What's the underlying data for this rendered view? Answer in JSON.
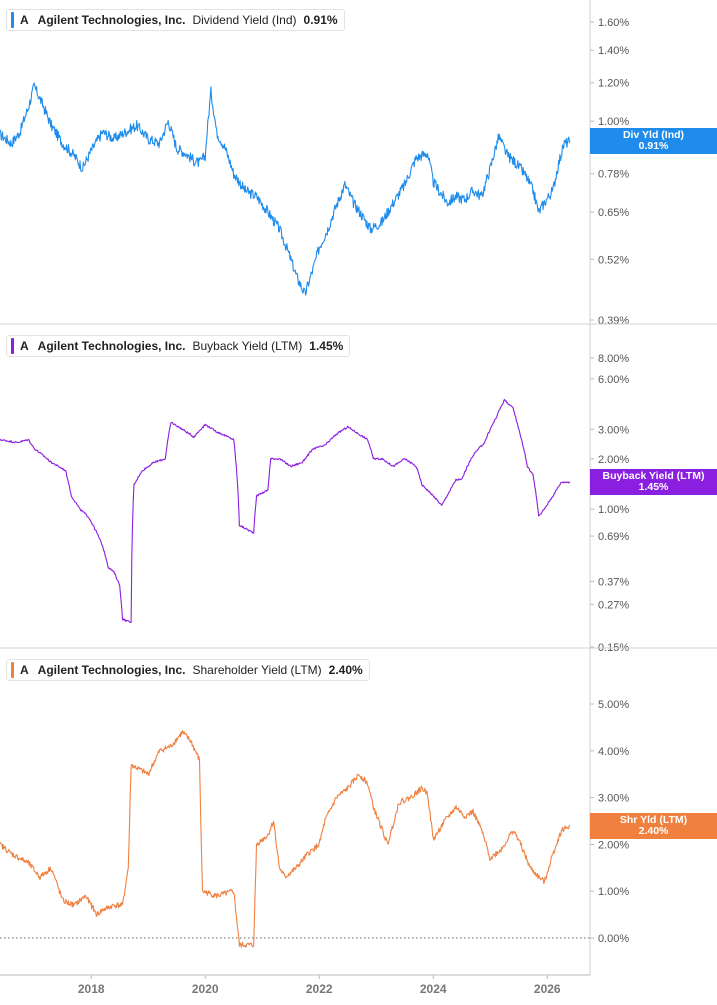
{
  "chart_data": [
    {
      "type": "line",
      "ticker": "A",
      "company": "Agilent Technologies, Inc.",
      "metric": "Dividend Yield (Ind)",
      "current_value": "0.91%",
      "tag_label": "Div Yld (Ind)",
      "tag_value": "0.91%",
      "color": "#1f8ceb",
      "scale": "log",
      "ylim": [
        0.37,
        1.9
      ],
      "y_ticks": [
        {
          "v": 1.6,
          "label": "1.60%"
        },
        {
          "v": 1.4,
          "label": "1.40%"
        },
        {
          "v": 1.2,
          "label": "1.20%"
        },
        {
          "v": 1.0,
          "label": "1.00%"
        },
        {
          "v": 0.91,
          "label": "0.91%"
        },
        {
          "v": 0.78,
          "label": "0.78%"
        },
        {
          "v": 0.65,
          "label": "0.65%"
        },
        {
          "v": 0.52,
          "label": "0.52%"
        },
        {
          "v": 0.39,
          "label": "0.39%"
        }
      ],
      "x": [
        2016.4,
        2016.6,
        2016.75,
        2016.9,
        2017.0,
        2017.15,
        2017.3,
        2017.5,
        2017.7,
        2017.85,
        2018.0,
        2018.2,
        2018.4,
        2018.6,
        2018.8,
        2019.0,
        2019.2,
        2019.35,
        2019.5,
        2019.65,
        2019.8,
        2019.9,
        2020.0,
        2020.1,
        2020.2,
        2020.35,
        2020.5,
        2020.7,
        2020.9,
        2021.1,
        2021.3,
        2021.5,
        2021.6,
        2021.75,
        2021.9,
        2022.0,
        2022.15,
        2022.3,
        2022.45,
        2022.6,
        2022.75,
        2022.9,
        2023.1,
        2023.3,
        2023.5,
        2023.7,
        2023.9,
        2024.0,
        2024.1,
        2024.25,
        2024.4,
        2024.55,
        2024.7,
        2024.85,
        2025.0,
        2025.15,
        2025.3,
        2025.45,
        2025.6,
        2025.75,
        2025.85,
        2025.95,
        2026.1,
        2026.2,
        2026.3,
        2026.4
      ],
      "values": [
        0.94,
        0.9,
        0.95,
        1.07,
        1.18,
        1.08,
        0.98,
        0.9,
        0.85,
        0.8,
        0.87,
        0.95,
        0.92,
        0.95,
        0.98,
        0.92,
        0.9,
        1.0,
        0.88,
        0.86,
        0.83,
        0.82,
        0.85,
        1.15,
        0.95,
        0.88,
        0.78,
        0.72,
        0.7,
        0.65,
        0.6,
        0.52,
        0.48,
        0.44,
        0.5,
        0.55,
        0.6,
        0.67,
        0.74,
        0.68,
        0.64,
        0.6,
        0.62,
        0.68,
        0.74,
        0.84,
        0.86,
        0.75,
        0.72,
        0.68,
        0.7,
        0.69,
        0.72,
        0.7,
        0.8,
        0.93,
        0.85,
        0.82,
        0.78,
        0.72,
        0.65,
        0.68,
        0.72,
        0.82,
        0.9,
        0.91
      ]
    },
    {
      "type": "line",
      "ticker": "A",
      "company": "Agilent Technologies, Inc.",
      "metric": "Buyback Yield (LTM)",
      "current_value": "1.45%",
      "tag_label": "Buyback Yield (LTM)",
      "tag_value": "1.45%",
      "color": "#8a1fe0",
      "scale": "log",
      "ylim": [
        0.145,
        10.5
      ],
      "y_ticks": [
        {
          "v": 8.0,
          "label": "8.00%"
        },
        {
          "v": 6.0,
          "label": "6.00%"
        },
        {
          "v": 3.0,
          "label": "3.00%"
        },
        {
          "v": 2.0,
          "label": "2.00%"
        },
        {
          "v": 1.0,
          "label": "1.00%"
        },
        {
          "v": 0.69,
          "label": "0.69%"
        },
        {
          "v": 0.37,
          "label": "0.37%"
        },
        {
          "v": 0.27,
          "label": "0.27%"
        },
        {
          "v": 0.15,
          "label": "0.15%"
        }
      ],
      "x": [
        2016.4,
        2016.7,
        2016.9,
        2017.0,
        2017.3,
        2017.55,
        2017.65,
        2017.8,
        2017.95,
        2018.1,
        2018.2,
        2018.3,
        2018.4,
        2018.5,
        2018.55,
        2018.7,
        2018.75,
        2018.9,
        2019.1,
        2019.3,
        2019.4,
        2019.6,
        2019.8,
        2020.0,
        2020.2,
        2020.5,
        2020.6,
        2020.85,
        2020.9,
        2021.1,
        2021.15,
        2021.3,
        2021.5,
        2021.7,
        2021.9,
        2022.1,
        2022.3,
        2022.5,
        2022.7,
        2022.85,
        2022.95,
        2023.1,
        2023.3,
        2023.5,
        2023.7,
        2023.8,
        2023.9,
        2024.0,
        2024.15,
        2024.3,
        2024.4,
        2024.5,
        2024.7,
        2024.9,
        2025.1,
        2025.25,
        2025.4,
        2025.5,
        2025.65,
        2025.75,
        2025.85,
        2025.95,
        2026.1,
        2026.25,
        2026.4
      ],
      "values": [
        2.6,
        2.5,
        2.6,
        2.3,
        1.9,
        1.7,
        1.2,
        1.0,
        0.9,
        0.72,
        0.6,
        0.45,
        0.42,
        0.35,
        0.22,
        0.21,
        1.4,
        1.7,
        1.9,
        2.0,
        3.3,
        3.0,
        2.7,
        3.2,
        2.9,
        2.6,
        0.8,
        0.72,
        1.2,
        1.3,
        2.0,
        2.0,
        1.8,
        1.9,
        2.3,
        2.4,
        2.8,
        3.1,
        2.8,
        2.6,
        2.0,
        2.0,
        1.8,
        2.0,
        1.8,
        1.4,
        1.3,
        1.2,
        1.05,
        1.3,
        1.5,
        1.5,
        2.1,
        2.5,
        3.5,
        4.5,
        4.0,
        3.0,
        1.8,
        1.6,
        0.9,
        1.0,
        1.2,
        1.45,
        1.45
      ]
    },
    {
      "type": "line",
      "ticker": "A",
      "company": "Agilent Technologies, Inc.",
      "metric": "Shareholder Yield (LTM)",
      "current_value": "2.40%",
      "tag_label": "Shr Yld (LTM)",
      "tag_value": "2.40%",
      "color": "#f08040",
      "scale": "linear",
      "ylim": [
        -0.8,
        5.6
      ],
      "y_ticks": [
        {
          "v": 5.0,
          "label": "5.00%"
        },
        {
          "v": 4.0,
          "label": "4.00%"
        },
        {
          "v": 3.0,
          "label": "3.00%"
        },
        {
          "v": 2.0,
          "label": "2.00%"
        },
        {
          "v": 1.0,
          "label": "1.00%"
        },
        {
          "v": 0.0,
          "label": "0.00%"
        }
      ],
      "x": [
        2016.4,
        2016.6,
        2016.9,
        2017.1,
        2017.3,
        2017.5,
        2017.7,
        2017.9,
        2018.1,
        2018.2,
        2018.4,
        2018.55,
        2018.65,
        2018.7,
        2019.0,
        2019.2,
        2019.4,
        2019.6,
        2019.75,
        2019.9,
        2019.95,
        2020.2,
        2020.5,
        2020.6,
        2020.85,
        2020.9,
        2021.1,
        2021.2,
        2021.3,
        2021.4,
        2021.6,
        2021.8,
        2022.0,
        2022.1,
        2022.3,
        2022.5,
        2022.7,
        2022.85,
        2022.95,
        2023.2,
        2023.4,
        2023.6,
        2023.8,
        2023.9,
        2024.0,
        2024.2,
        2024.4,
        2024.55,
        2024.7,
        2024.85,
        2025.0,
        2025.2,
        2025.4,
        2025.5,
        2025.7,
        2025.85,
        2025.95,
        2026.1,
        2026.25,
        2026.4
      ],
      "values": [
        2.0,
        1.8,
        1.6,
        1.3,
        1.5,
        0.8,
        0.7,
        0.9,
        0.5,
        0.6,
        0.7,
        0.7,
        1.5,
        3.7,
        3.5,
        4.0,
        4.1,
        4.4,
        4.2,
        3.8,
        1.0,
        0.9,
        1.0,
        -0.15,
        -0.15,
        2.0,
        2.2,
        2.5,
        1.5,
        1.3,
        1.5,
        1.8,
        2.0,
        2.5,
        3.0,
        3.2,
        3.5,
        3.3,
        2.8,
        2.0,
        2.9,
        3.0,
        3.2,
        3.1,
        2.1,
        2.5,
        2.8,
        2.6,
        2.7,
        2.3,
        1.7,
        1.9,
        2.3,
        2.1,
        1.5,
        1.3,
        1.2,
        1.8,
        2.3,
        2.4
      ]
    }
  ],
  "x_axis": {
    "range": [
      2016.4,
      2026.75
    ],
    "ticks": [
      {
        "v": 2018,
        "label": "2018"
      },
      {
        "v": 2020,
        "label": "2020"
      },
      {
        "v": 2022,
        "label": "2022"
      },
      {
        "v": 2024,
        "label": "2024"
      },
      {
        "v": 2026,
        "label": "2026"
      }
    ]
  }
}
